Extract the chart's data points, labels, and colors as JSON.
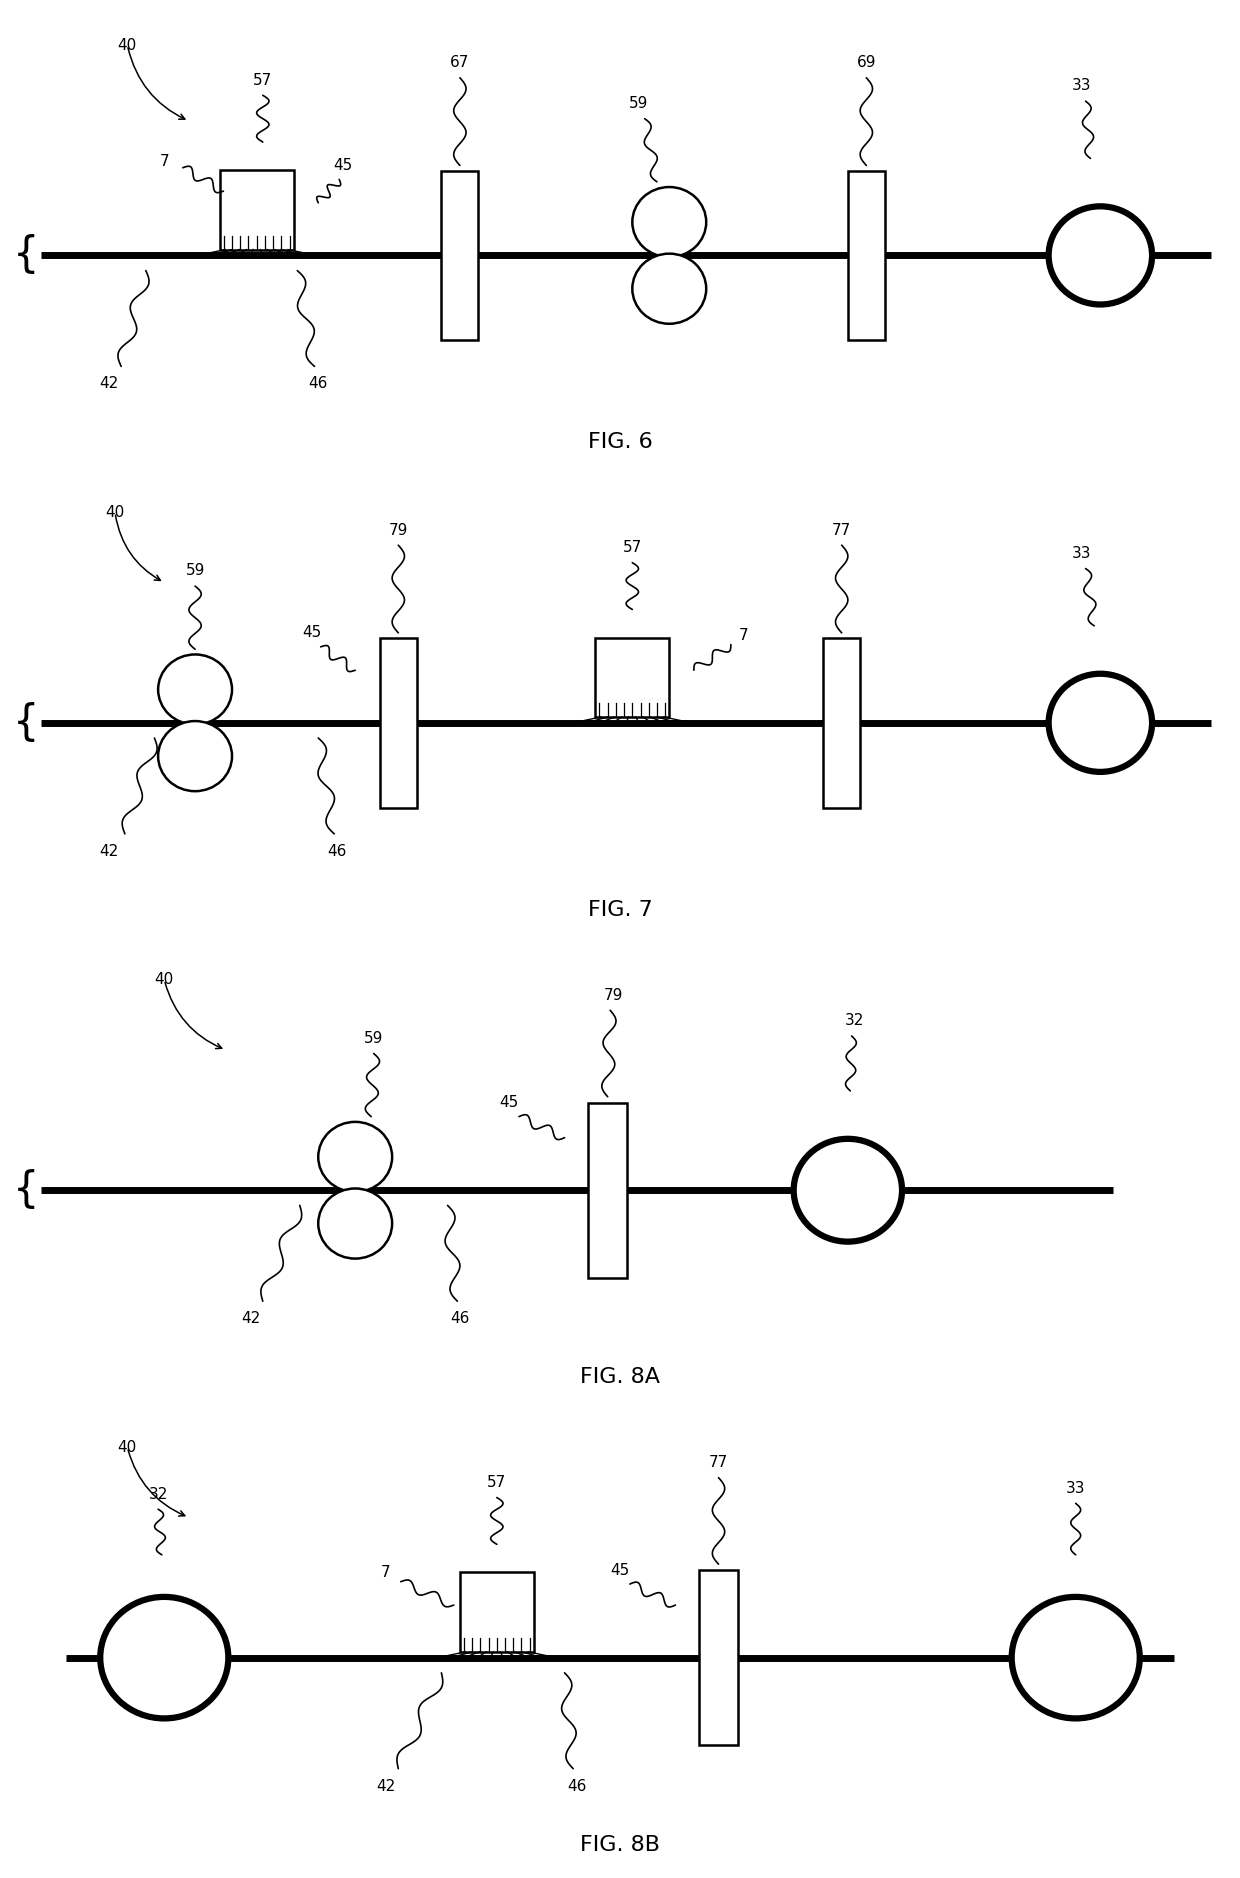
{
  "background_color": "#ffffff",
  "line_color": "#000000",
  "fig_labels": [
    "FIG. 6",
    "FIG. 7",
    "FIG. 8A",
    "FIG. 8B"
  ]
}
